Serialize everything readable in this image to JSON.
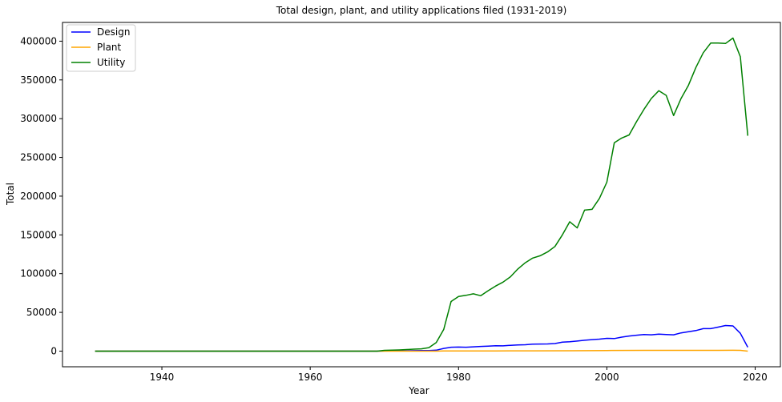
{
  "chart_data": {
    "type": "line",
    "title": "Total design, plant, and utility applications filed (1931-2019)",
    "xlabel": "Year",
    "ylabel": "Total",
    "xlim": [
      1926.6,
      2023.4
    ],
    "ylim": [
      -20200,
      424200
    ],
    "xticks": [
      1940,
      1960,
      1980,
      2000,
      2020
    ],
    "yticks": [
      0,
      50000,
      100000,
      150000,
      200000,
      250000,
      300000,
      350000,
      400000
    ],
    "grid": false,
    "legend": "top-left",
    "series": [
      {
        "name": "Design",
        "color": "#0000ff",
        "x": [
          1931,
          1935,
          1940,
          1945,
          1950,
          1955,
          1960,
          1965,
          1969,
          1970,
          1971,
          1972,
          1973,
          1974,
          1975,
          1976,
          1977,
          1978,
          1979,
          1980,
          1981,
          1982,
          1983,
          1984,
          1985,
          1986,
          1987,
          1988,
          1989,
          1990,
          1991,
          1992,
          1993,
          1994,
          1995,
          1996,
          1997,
          1998,
          1999,
          2000,
          2001,
          2002,
          2003,
          2004,
          2005,
          2006,
          2007,
          2008,
          2009,
          2010,
          2011,
          2012,
          2013,
          2014,
          2015,
          2016,
          2017,
          2018,
          2019
        ],
        "y": [
          0,
          0,
          0,
          0,
          0,
          0,
          0,
          0,
          0,
          200,
          300,
          400,
          500,
          600,
          700,
          800,
          1200,
          3500,
          5000,
          5200,
          5000,
          5500,
          6000,
          6500,
          7000,
          6800,
          7500,
          8000,
          8200,
          9000,
          9200,
          9300,
          9800,
          11500,
          12000,
          13000,
          14000,
          14800,
          15500,
          16500,
          16200,
          18000,
          19500,
          20500,
          21500,
          21000,
          22000,
          21500,
          21000,
          23500,
          25000,
          26500,
          29000,
          29000,
          31000,
          33000,
          32500,
          23000,
          5000
        ]
      },
      {
        "name": "Plant",
        "color": "#ffa500",
        "x": [
          1931,
          1935,
          1940,
          1945,
          1950,
          1955,
          1960,
          1965,
          1970,
          1975,
          1977,
          1978,
          1979,
          1980,
          1985,
          1990,
          1995,
          2000,
          2005,
          2010,
          2015,
          2017,
          2018,
          2019
        ],
        "y": [
          0,
          0,
          0,
          0,
          0,
          0,
          0,
          0,
          0,
          0,
          0,
          200,
          300,
          300,
          300,
          400,
          500,
          800,
          1000,
          1000,
          1000,
          1100,
          1000,
          0
        ]
      },
      {
        "name": "Utility",
        "color": "#008000",
        "x": [
          1931,
          1935,
          1940,
          1945,
          1950,
          1955,
          1960,
          1965,
          1969,
          1970,
          1971,
          1972,
          1973,
          1974,
          1975,
          1976,
          1977,
          1978,
          1979,
          1980,
          1981,
          1982,
          1983,
          1984,
          1985,
          1986,
          1987,
          1988,
          1989,
          1990,
          1991,
          1992,
          1993,
          1994,
          1995,
          1996,
          1997,
          1998,
          1999,
          2000,
          2001,
          2002,
          2003,
          2004,
          2005,
          2006,
          2007,
          2008,
          2009,
          2010,
          2011,
          2012,
          2013,
          2014,
          2015,
          2016,
          2017,
          2018,
          2019
        ],
        "y": [
          0,
          0,
          0,
          0,
          0,
          0,
          0,
          0,
          0,
          1000,
          1200,
          1500,
          2000,
          2500,
          3000,
          4500,
          11000,
          28000,
          64000,
          70500,
          72000,
          74000,
          71500,
          78000,
          84000,
          89000,
          96000,
          106000,
          114000,
          120000,
          123000,
          128000,
          135000,
          150000,
          167000,
          159000,
          182000,
          183000,
          197000,
          218000,
          269000,
          275000,
          279000,
          296000,
          312000,
          326000,
          336000,
          330000,
          304000,
          326000,
          343000,
          366000,
          385000,
          397500,
          397500,
          397000,
          404000,
          380000,
          278000
        ]
      }
    ]
  }
}
